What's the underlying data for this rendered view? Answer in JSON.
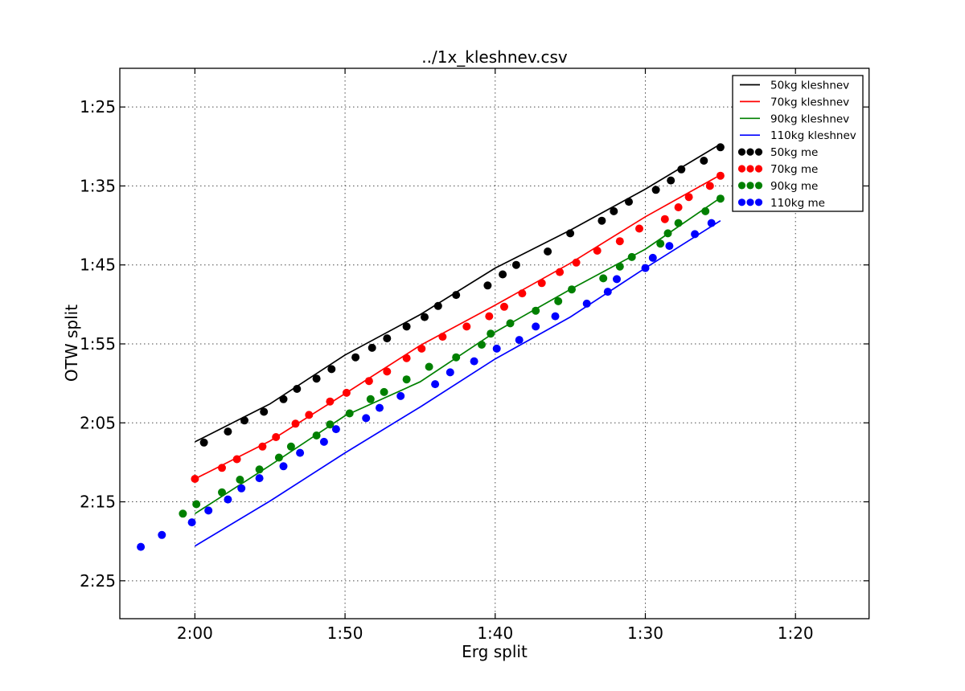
{
  "chart_data": {
    "type": "line+scatter",
    "title": "../1x_kleshnev.csv",
    "xlabel": "Erg split",
    "ylabel": "OTW split",
    "axes_note": "both axes are times in seconds per 500m, displayed as m:ss; x axis reversed (slower splits left), y axis inverted (faster splits up)",
    "xlim": [
      125.0,
      75.1
    ],
    "ylim": [
      80.1,
      149.8
    ],
    "grid": true,
    "grid_linestyle": "dotted",
    "x_ticks": [
      {
        "value": 120,
        "label": "2:00"
      },
      {
        "value": 110,
        "label": "1:50"
      },
      {
        "value": 100,
        "label": "1:40"
      },
      {
        "value": 90,
        "label": "1:30"
      },
      {
        "value": 80,
        "label": "1:20"
      }
    ],
    "y_ticks": [
      {
        "value": 85,
        "label": "1:25"
      },
      {
        "value": 95,
        "label": "1:35"
      },
      {
        "value": 105,
        "label": "1:45"
      },
      {
        "value": 115,
        "label": "1:55"
      },
      {
        "value": 125,
        "label": "2:05"
      },
      {
        "value": 135,
        "label": "2:15"
      },
      {
        "value": 145,
        "label": "2:25"
      }
    ],
    "colors": {
      "50kg": "#000000",
      "70kg": "#ff0000",
      "90kg": "#008000",
      "110kg": "#0000ff"
    },
    "line_series": [
      {
        "name": "50kg kleshnev",
        "color": "#000000",
        "erg": [
          120,
          115,
          110,
          105,
          100,
          95,
          90,
          85
        ],
        "otw": [
          127.4,
          122.6,
          116.4,
          111.3,
          105.4,
          100.6,
          95.4,
          89.7
        ]
      },
      {
        "name": "70kg kleshnev",
        "color": "#ff0000",
        "erg": [
          120,
          115,
          110,
          105,
          100,
          95,
          90,
          85
        ],
        "otw": [
          132.1,
          127.3,
          121.3,
          115.2,
          110.1,
          104.8,
          98.9,
          93.6
        ]
      },
      {
        "name": "90kg kleshnev",
        "color": "#008000",
        "erg": [
          120,
          115,
          110,
          105,
          100,
          95,
          90,
          85
        ],
        "otw": [
          136.5,
          130.4,
          124.1,
          119.8,
          113.5,
          108.1,
          103.0,
          96.5
        ]
      },
      {
        "name": "110kg kleshnev",
        "color": "#0000ff",
        "erg": [
          120,
          115,
          110,
          105,
          100,
          95,
          90,
          85
        ],
        "otw": [
          140.6,
          134.9,
          128.8,
          123.0,
          116.9,
          111.6,
          105.4,
          99.4
        ]
      }
    ],
    "scatter_series": [
      {
        "name": "50kg me",
        "color": "#000000",
        "points": [
          [
            119.4,
            127.5
          ],
          [
            117.8,
            126.1
          ],
          [
            116.7,
            124.7
          ],
          [
            115.4,
            123.6
          ],
          [
            114.1,
            122.0
          ],
          [
            113.2,
            120.7
          ],
          [
            111.9,
            119.4
          ],
          [
            110.9,
            118.2
          ],
          [
            109.3,
            116.7
          ],
          [
            108.2,
            115.5
          ],
          [
            107.2,
            114.3
          ],
          [
            105.9,
            112.8
          ],
          [
            104.7,
            111.6
          ],
          [
            103.8,
            110.2
          ],
          [
            102.6,
            108.8
          ],
          [
            100.5,
            107.6
          ],
          [
            99.5,
            106.2
          ],
          [
            98.6,
            105.0
          ],
          [
            96.5,
            103.3
          ],
          [
            95.0,
            101.0
          ],
          [
            92.9,
            99.4
          ],
          [
            92.1,
            98.2
          ],
          [
            91.1,
            97.0
          ],
          [
            89.3,
            95.5
          ],
          [
            88.3,
            94.3
          ],
          [
            87.6,
            92.9
          ],
          [
            86.1,
            91.8
          ],
          [
            85.0,
            90.1
          ]
        ]
      },
      {
        "name": "70kg me",
        "color": "#ff0000",
        "points": [
          [
            120.0,
            132.1
          ],
          [
            118.2,
            130.7
          ],
          [
            117.2,
            129.6
          ],
          [
            115.5,
            128.0
          ],
          [
            114.6,
            126.8
          ],
          [
            113.3,
            125.1
          ],
          [
            112.4,
            124.0
          ],
          [
            111.0,
            122.3
          ],
          [
            109.9,
            121.2
          ],
          [
            108.4,
            119.7
          ],
          [
            107.2,
            118.5
          ],
          [
            105.9,
            116.8
          ],
          [
            104.9,
            115.6
          ],
          [
            103.5,
            114.1
          ],
          [
            101.9,
            112.8
          ],
          [
            100.4,
            111.5
          ],
          [
            99.4,
            110.3
          ],
          [
            98.2,
            108.6
          ],
          [
            96.9,
            107.3
          ],
          [
            95.7,
            105.9
          ],
          [
            94.6,
            104.7
          ],
          [
            93.2,
            103.2
          ],
          [
            91.7,
            102.0
          ],
          [
            90.4,
            100.4
          ],
          [
            88.7,
            99.2
          ],
          [
            87.8,
            97.7
          ],
          [
            87.1,
            96.4
          ],
          [
            85.7,
            95.0
          ],
          [
            85.0,
            93.7
          ]
        ]
      },
      {
        "name": "90kg me",
        "color": "#008000",
        "points": [
          [
            120.8,
            136.5
          ],
          [
            119.9,
            135.3
          ],
          [
            118.2,
            133.8
          ],
          [
            117.0,
            132.2
          ],
          [
            115.7,
            130.9
          ],
          [
            114.4,
            129.4
          ],
          [
            113.6,
            128.0
          ],
          [
            111.9,
            126.6
          ],
          [
            111.0,
            125.2
          ],
          [
            109.7,
            123.8
          ],
          [
            108.3,
            122.0
          ],
          [
            107.4,
            121.1
          ],
          [
            105.9,
            119.5
          ],
          [
            104.4,
            117.9
          ],
          [
            102.6,
            116.7
          ],
          [
            100.9,
            115.1
          ],
          [
            100.3,
            113.7
          ],
          [
            99.0,
            112.4
          ],
          [
            97.3,
            110.8
          ],
          [
            95.8,
            109.6
          ],
          [
            94.9,
            108.1
          ],
          [
            92.8,
            106.7
          ],
          [
            91.7,
            105.2
          ],
          [
            90.9,
            104.0
          ],
          [
            89.0,
            102.3
          ],
          [
            88.5,
            101.0
          ],
          [
            87.8,
            99.7
          ],
          [
            86.0,
            98.2
          ],
          [
            85.0,
            96.6
          ]
        ]
      },
      {
        "name": "110kg me",
        "color": "#0000ff",
        "points": [
          [
            123.6,
            140.7
          ],
          [
            122.2,
            139.2
          ],
          [
            120.2,
            137.6
          ],
          [
            119.1,
            136.1
          ],
          [
            117.8,
            134.7
          ],
          [
            116.9,
            133.3
          ],
          [
            115.7,
            132.0
          ],
          [
            114.1,
            130.5
          ],
          [
            113.0,
            128.8
          ],
          [
            111.4,
            127.4
          ],
          [
            110.6,
            125.8
          ],
          [
            108.6,
            124.4
          ],
          [
            107.7,
            123.1
          ],
          [
            106.3,
            121.6
          ],
          [
            104.0,
            120.1
          ],
          [
            103.0,
            118.6
          ],
          [
            101.4,
            117.2
          ],
          [
            99.9,
            115.6
          ],
          [
            98.4,
            114.5
          ],
          [
            97.3,
            112.8
          ],
          [
            96.0,
            111.5
          ],
          [
            93.9,
            109.9
          ],
          [
            92.5,
            108.4
          ],
          [
            91.9,
            106.8
          ],
          [
            90.0,
            105.4
          ],
          [
            89.5,
            104.1
          ],
          [
            88.4,
            102.6
          ],
          [
            86.7,
            101.1
          ],
          [
            85.6,
            99.7
          ]
        ]
      }
    ],
    "legend": {
      "position": "upper right",
      "entries": [
        {
          "label": "50kg kleshnev",
          "type": "line",
          "color": "#000000"
        },
        {
          "label": "70kg kleshnev",
          "type": "line",
          "color": "#ff0000"
        },
        {
          "label": "90kg kleshnev",
          "type": "line",
          "color": "#008000"
        },
        {
          "label": "110kg kleshnev",
          "type": "line",
          "color": "#0000ff"
        },
        {
          "label": "50kg me",
          "type": "scatter",
          "color": "#000000"
        },
        {
          "label": "70kg me",
          "type": "scatter",
          "color": "#ff0000"
        },
        {
          "label": "90kg me",
          "type": "scatter",
          "color": "#008000"
        },
        {
          "label": "110kg me",
          "type": "scatter",
          "color": "#0000ff"
        }
      ]
    }
  }
}
